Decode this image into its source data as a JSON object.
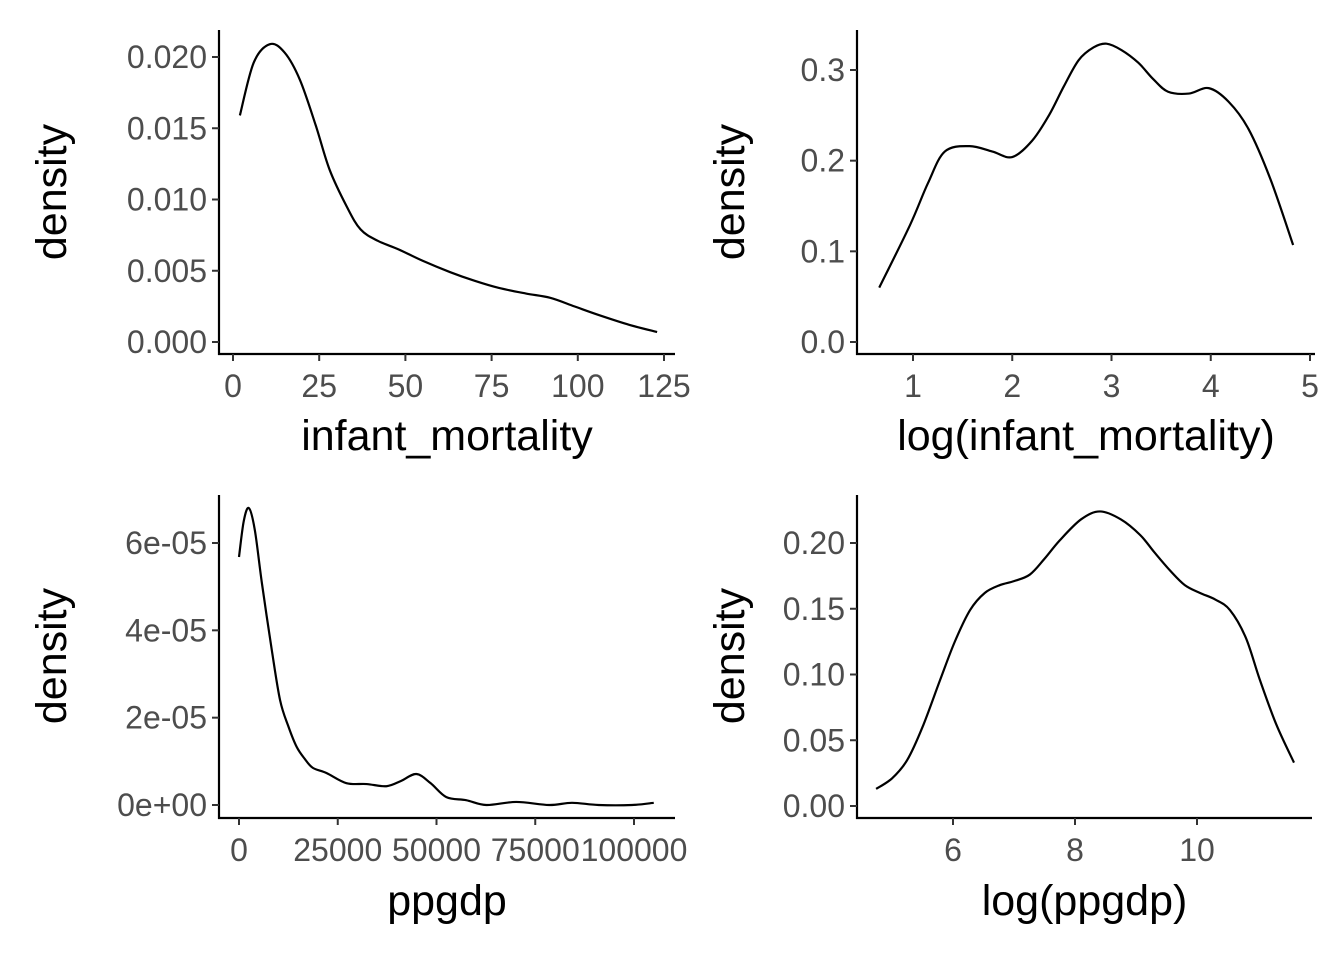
{
  "chart_data": [
    {
      "type": "line",
      "xlabel": "infant_mortality",
      "ylabel": "density",
      "xlim": [
        0,
        125
      ],
      "ylim": [
        0,
        0.02
      ],
      "x_ticks": [
        0,
        25,
        50,
        75,
        100,
        125
      ],
      "x_tick_labels": [
        "0",
        "25",
        "50",
        "75",
        "100",
        "125"
      ],
      "y_ticks": [
        0,
        0.005,
        0.01,
        0.015,
        0.02
      ],
      "y_tick_labels": [
        "0.000",
        "0.005",
        "0.010",
        "0.015",
        "0.020"
      ],
      "grid": false,
      "x": [
        2,
        6,
        10.7,
        15,
        19.4,
        24,
        28,
        33,
        37,
        42,
        48,
        55,
        63,
        70,
        77,
        85,
        92,
        99,
        106,
        115,
        123
      ],
      "y": [
        0.0159,
        0.0196,
        0.0209,
        0.0203,
        0.0184,
        0.0152,
        0.0121,
        0.0095,
        0.0079,
        0.0071,
        0.0065,
        0.0057,
        0.0049,
        0.0043,
        0.0038,
        0.0034,
        0.0031,
        0.0025,
        0.0019,
        0.0012,
        0.0007
      ]
    },
    {
      "type": "line",
      "xlabel": "log(infant_mortality)",
      "ylabel": "density",
      "xlim": [
        0.66,
        4.83
      ],
      "ylim": [
        0,
        0.3
      ],
      "x_ticks": [
        1,
        2,
        3,
        4,
        5
      ],
      "x_tick_labels": [
        "1",
        "2",
        "3",
        "4",
        "5"
      ],
      "y_ticks": [
        0,
        0.1,
        0.2,
        0.3
      ],
      "y_tick_labels": [
        "0.0",
        "0.1",
        "0.2",
        "0.3"
      ],
      "grid": false,
      "x": [
        0.66,
        0.97,
        1.15,
        1.32,
        1.57,
        1.8,
        2.0,
        2.2,
        2.37,
        2.52,
        2.67,
        2.82,
        2.95,
        3.1,
        3.27,
        3.42,
        3.57,
        3.78,
        3.98,
        4.18,
        4.38,
        4.6,
        4.83
      ],
      "y": [
        0.06,
        0.129,
        0.175,
        0.21,
        0.216,
        0.21,
        0.204,
        0.222,
        0.25,
        0.282,
        0.311,
        0.325,
        0.329,
        0.322,
        0.308,
        0.29,
        0.276,
        0.274,
        0.28,
        0.265,
        0.235,
        0.18,
        0.107
      ]
    },
    {
      "type": "line",
      "xlabel": "ppgdp",
      "ylabel": "density",
      "xlim": [
        0,
        105000
      ],
      "ylim": [
        0,
        6e-05
      ],
      "x_ticks": [
        0,
        25000,
        50000,
        75000,
        100000
      ],
      "x_tick_labels": [
        "0",
        "25000",
        "50000",
        "75000",
        "100000"
      ],
      "y_ticks": [
        0,
        2e-05,
        4e-05,
        6e-05
      ],
      "y_tick_labels": [
        "0e+00",
        "2e-05",
        "4e-05",
        "6e-05"
      ],
      "grid": false,
      "x": [
        0,
        1200,
        2500,
        4000,
        5800,
        8300,
        10400,
        12500,
        14600,
        16700,
        18700,
        22200,
        27200,
        32300,
        37300,
        41000,
        44900,
        48500,
        52500,
        57500,
        62600,
        70200,
        78500,
        84300,
        91000,
        99500,
        105000
      ],
      "y": [
        5.68e-05,
        6.5e-05,
        6.8e-05,
        6.3e-05,
        5.08e-05,
        3.55e-05,
        2.4e-05,
        1.8e-05,
        1.33e-05,
        1.05e-05,
        8.5e-06,
        7.3e-06,
        5e-06,
        4.8e-06,
        4.3e-06,
        5.5e-06,
        7.1e-06,
        5e-06,
        1.8e-06,
        1.1e-06,
        0.0,
        7e-07,
        0.0,
        5e-07,
        0.0,
        0.0,
        5e-07
      ]
    },
    {
      "type": "line",
      "xlabel": "log(ppgdp)",
      "ylabel": "density",
      "xlim": [
        4.74,
        11.59
      ],
      "ylim": [
        0,
        0.2
      ],
      "x_ticks": [
        6,
        8,
        10
      ],
      "x_tick_labels": [
        "6",
        "8",
        "10"
      ],
      "y_ticks": [
        0,
        0.05,
        0.1,
        0.15,
        0.2
      ],
      "y_tick_labels": [
        "0.00",
        "0.05",
        "0.10",
        "0.15",
        "0.20"
      ],
      "grid": false,
      "x": [
        4.74,
        5.0,
        5.25,
        5.5,
        5.79,
        6.03,
        6.28,
        6.52,
        6.77,
        7.0,
        7.26,
        7.5,
        7.75,
        8.1,
        8.41,
        8.75,
        9.07,
        9.3,
        9.56,
        9.8,
        10.05,
        10.3,
        10.54,
        10.8,
        11.03,
        11.3,
        11.59
      ],
      "y": [
        0.013,
        0.021,
        0.035,
        0.06,
        0.096,
        0.125,
        0.149,
        0.162,
        0.168,
        0.171,
        0.176,
        0.188,
        0.202,
        0.218,
        0.224,
        0.218,
        0.206,
        0.193,
        0.179,
        0.168,
        0.162,
        0.157,
        0.149,
        0.128,
        0.096,
        0.062,
        0.033
      ]
    }
  ]
}
